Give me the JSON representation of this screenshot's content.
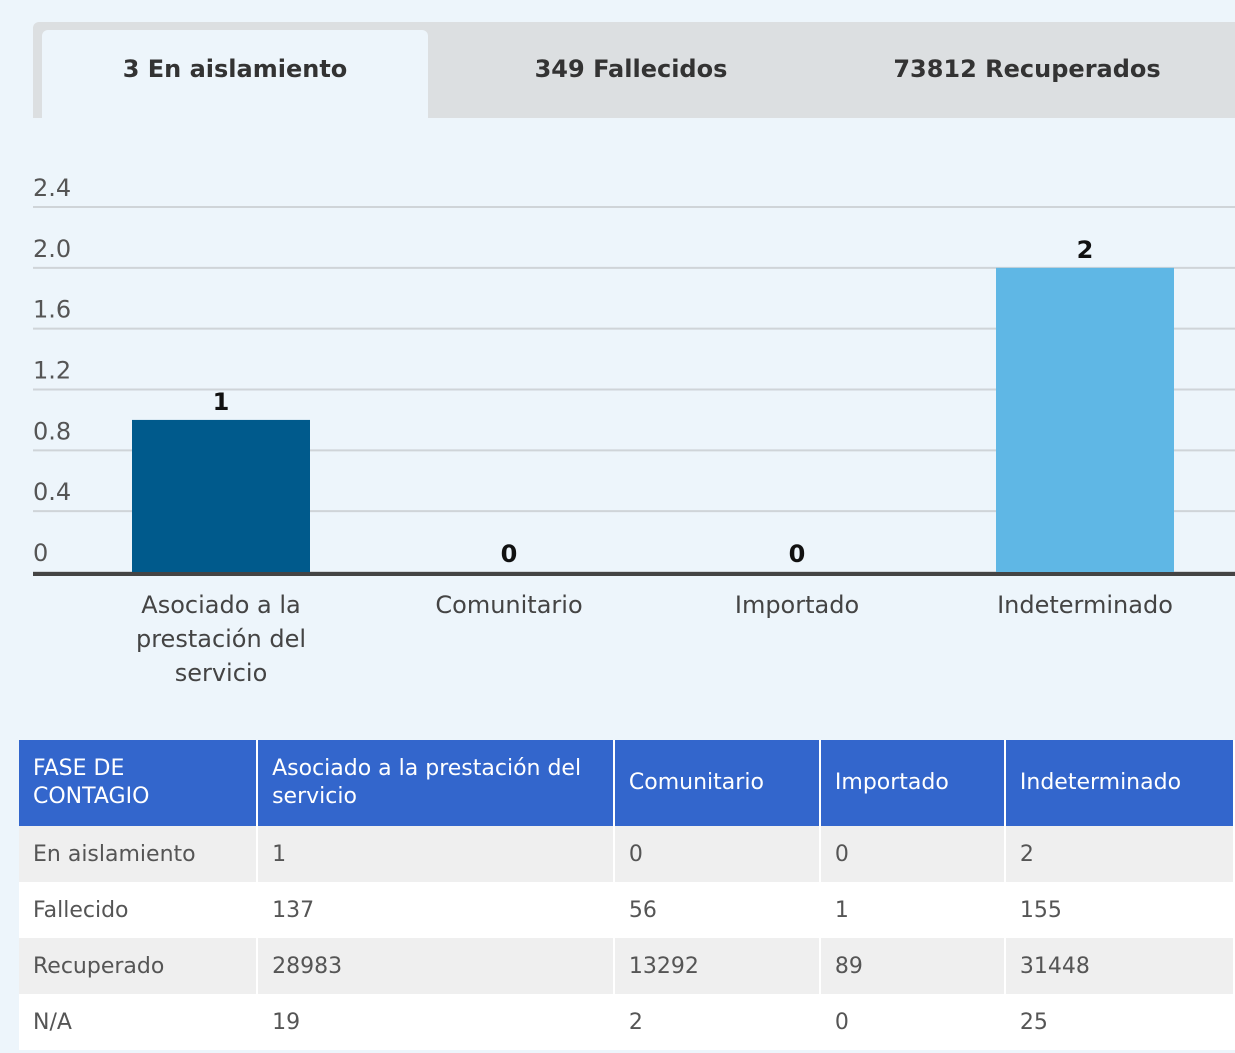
{
  "tabs": [
    "3 En aislamiento",
    "349 Fallecidos",
    "73812 Recuperados"
  ],
  "chart_data": {
    "type": "bar",
    "categories": [
      "Asociado a la prestación del servicio",
      "Comunitario",
      "Importado",
      "Indeterminado"
    ],
    "values": [
      1,
      0,
      0,
      2
    ],
    "colors": [
      "#005a8c",
      "#005a8c",
      "#2a87c4",
      "#5fb7e5"
    ],
    "ylim": [
      0,
      2.4
    ],
    "yticks": [
      0,
      0.4,
      0.8,
      1.2,
      1.6,
      {
        "value": 2,
        "label": "2.0"
      },
      2.4
    ],
    "grid": true
  },
  "table": {
    "header": [
      "FASE DE CONTAGIO",
      "Asociado a la prestación del servicio",
      "Comunitario",
      "Importado",
      "Indeterminado"
    ],
    "rows": [
      [
        "En aislamiento",
        1,
        0,
        0,
        2
      ],
      [
        "Fallecido",
        137,
        56,
        1,
        155
      ],
      [
        "Recuperado",
        28983,
        13292,
        89,
        31448
      ],
      [
        "N/A",
        19,
        2,
        0,
        25
      ]
    ]
  }
}
